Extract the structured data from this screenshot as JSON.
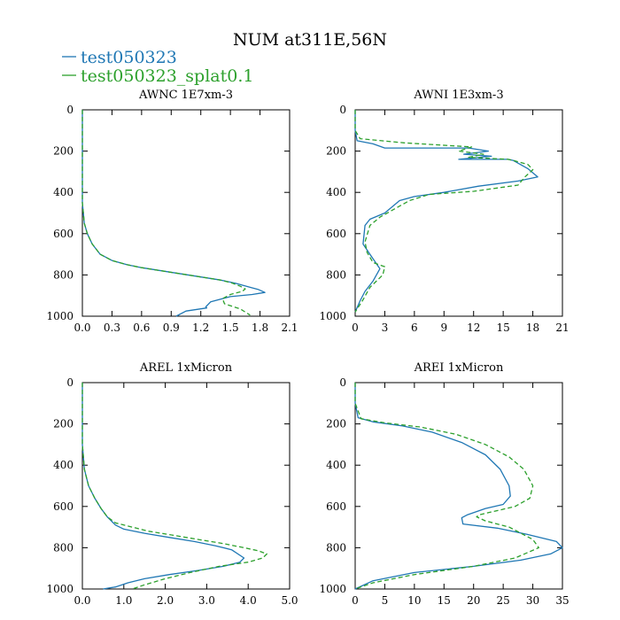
{
  "chart_data": {
    "title": "NUM at311E,56N",
    "legend": [
      {
        "name": "test050323",
        "color": "#1f77b4",
        "dash": "solid"
      },
      {
        "name": "test050323_splat0.1",
        "color": "#2ca02c",
        "dash": "dashed"
      }
    ],
    "panels": [
      {
        "type": "line",
        "title": "AWNC  1E7xm-3",
        "xlim": [
          0,
          2.1
        ],
        "ylim": [
          1000,
          0
        ],
        "xticks": [
          0,
          0.3,
          0.6,
          0.9,
          1.2,
          1.5,
          1.8,
          2.1
        ],
        "xtick_labels": [
          "0.0",
          "0.3",
          "0.6",
          "0.9",
          "1.2",
          "1.5",
          "1.8",
          "2.1"
        ],
        "yticks": [
          0,
          200,
          400,
          600,
          800,
          1000
        ],
        "ytick_labels": [
          "0",
          "200",
          "400",
          "600",
          "800",
          "1000"
        ],
        "series": [
          {
            "name": "test050323",
            "x": [
              0,
              0,
              0,
              0.01,
              0.02,
              0.05,
              0.1,
              0.18,
              0.3,
              0.45,
              0.6,
              0.8,
              1.0,
              1.2,
              1.4,
              1.55,
              1.7,
              1.78,
              1.85,
              1.72,
              1.5,
              1.3,
              1.25,
              1.26,
              1.05,
              0.95
            ],
            "y": [
              0,
              300,
              450,
              500,
              550,
              600,
              650,
              700,
              730,
              750,
              765,
              780,
              795,
              810,
              825,
              840,
              860,
              870,
              885,
              895,
              905,
              930,
              955,
              960,
              975,
              1000
            ]
          },
          {
            "name": "test050323_splat0.1",
            "x": [
              0,
              0,
              0,
              0.01,
              0.02,
              0.05,
              0.1,
              0.18,
              0.3,
              0.45,
              0.6,
              0.8,
              1.0,
              1.2,
              1.4,
              1.52,
              1.6,
              1.65,
              1.62,
              1.5,
              1.42,
              1.44,
              1.6,
              1.7
            ],
            "y": [
              0,
              300,
              450,
              500,
              550,
              600,
              650,
              700,
              730,
              750,
              765,
              780,
              795,
              810,
              825,
              840,
              855,
              868,
              880,
              895,
              915,
              940,
              965,
              995
            ]
          }
        ]
      },
      {
        "type": "line",
        "title": "AWNI  1E3xm-3",
        "xlim": [
          0,
          21
        ],
        "ylim": [
          1000,
          0
        ],
        "xticks": [
          0,
          3,
          6,
          9,
          12,
          15,
          18,
          21
        ],
        "xtick_labels": [
          "0",
          "3",
          "6",
          "9",
          "12",
          "15",
          "18",
          "21"
        ],
        "yticks": [
          0,
          200,
          400,
          600,
          800,
          1000
        ],
        "ytick_labels": [
          "0",
          "200",
          "400",
          "600",
          "800",
          "1000"
        ],
        "series": [
          {
            "name": "test050323",
            "x": [
              0,
              0,
              0.2,
              1.8,
              3.0,
              11.5,
              13.5,
              11.0,
              13.8,
              10.5,
              15.5,
              16.0,
              17.5,
              18.5,
              16.5,
              12.5,
              9.0,
              6.0,
              4.5,
              3.0,
              1.5,
              1.0,
              0.8,
              1.5,
              2.0,
              2.5,
              1.8,
              1.0,
              0.5,
              0
            ],
            "y": [
              0,
              100,
              150,
              165,
              185,
              185,
              200,
              215,
              225,
              240,
              240,
              245,
              285,
              325,
              345,
              370,
              400,
              420,
              440,
              500,
              530,
              560,
              650,
              700,
              735,
              770,
              830,
              880,
              925,
              980
            ]
          },
          {
            "name": "test050323_splat0.1",
            "x": [
              0,
              0,
              0.5,
              5.0,
              11.8,
              10.5,
              13.0,
              11.5,
              15.5,
              16.0,
              17.5,
              18.0,
              17.2,
              16.5,
              12.0,
              7.5,
              5.5,
              4.0,
              2.5,
              1.5,
              1.0,
              1.2,
              1.8,
              3.0,
              2.8,
              1.5,
              0.8,
              0
            ],
            "y": [
              0,
              100,
              140,
              160,
              180,
              200,
              215,
              230,
              240,
              245,
              265,
              290,
              325,
              365,
              395,
              410,
              440,
              480,
              520,
              560,
              640,
              690,
              740,
              760,
              800,
              860,
              920,
              980
            ]
          }
        ]
      },
      {
        "type": "line",
        "title": "AREL  1xMicron",
        "xlim": [
          0,
          5.0
        ],
        "ylim": [
          1000,
          0
        ],
        "xticks": [
          0,
          1.0,
          2.0,
          3.0,
          4.0,
          5.0
        ],
        "xtick_labels": [
          "0.0",
          "1.0",
          "2.0",
          "3.0",
          "4.0",
          "5.0"
        ],
        "yticks": [
          0,
          200,
          400,
          600,
          800,
          1000
        ],
        "ytick_labels": [
          "0",
          "200",
          "400",
          "600",
          "800",
          "1000"
        ],
        "series": [
          {
            "name": "test050323",
            "x": [
              0,
              0,
              0.05,
              0.15,
              0.3,
              0.45,
              0.6,
              0.8,
              1.0,
              1.5,
              2.1,
              2.7,
              3.2,
              3.6,
              3.9,
              3.8,
              3.4,
              2.8,
              2.1,
              1.5,
              1.1,
              0.8,
              0.5
            ],
            "y": [
              0,
              300,
              420,
              500,
              560,
              610,
              650,
              690,
              710,
              730,
              750,
              770,
              790,
              810,
              850,
              870,
              890,
              910,
              930,
              950,
              970,
              990,
              1000
            ]
          },
          {
            "name": "test050323_splat0.1",
            "x": [
              0,
              0,
              0.05,
              0.15,
              0.3,
              0.45,
              0.6,
              0.8,
              1.2,
              1.6,
              2.2,
              2.8,
              3.4,
              3.9,
              4.25,
              4.45,
              4.35,
              4.0,
              3.3,
              2.6,
              2.0,
              1.5,
              1.2
            ],
            "y": [
              0,
              300,
              420,
              500,
              560,
              610,
              650,
              680,
              700,
              720,
              740,
              760,
              780,
              800,
              815,
              830,
              850,
              870,
              890,
              920,
              950,
              980,
              1000
            ]
          }
        ]
      },
      {
        "type": "line",
        "title": "AREI  1xMicron",
        "xlim": [
          0,
          35
        ],
        "ylim": [
          1000,
          0
        ],
        "xticks": [
          0,
          5,
          10,
          15,
          20,
          25,
          30,
          35
        ],
        "xtick_labels": [
          "0",
          "5",
          "10",
          "15",
          "20",
          "25",
          "30",
          "35"
        ],
        "yticks": [
          0,
          200,
          400,
          600,
          800,
          1000
        ],
        "ytick_labels": [
          "0",
          "200",
          "400",
          "600",
          "800",
          "1000"
        ],
        "series": [
          {
            "name": "test050323",
            "x": [
              0,
              0,
              0.5,
              3,
              8,
              13,
              18,
              22,
              24.5,
              26,
              26.2,
              25,
              22,
              19,
              18,
              18.2,
              24,
              29,
              34,
              35,
              33,
              28,
              20,
              10,
              3,
              0
            ],
            "y": [
              0,
              100,
              170,
              190,
              210,
              240,
              290,
              350,
              420,
              500,
              550,
              590,
              610,
              640,
              655,
              685,
              705,
              735,
              770,
              800,
              830,
              860,
              890,
              920,
              960,
              1000
            ]
          },
          {
            "name": "test050323_splat0.1",
            "x": [
              0,
              0,
              1,
              5,
              11,
              17,
              22,
              26,
              28.5,
              30,
              29.5,
              27,
              24,
              21,
              20.5,
              22,
              26,
              30,
              31,
              27,
              20,
              10,
              3,
              0
            ],
            "y": [
              0,
              100,
              175,
              195,
              215,
              250,
              300,
              360,
              420,
              500,
              560,
              600,
              620,
              640,
              650,
              670,
              700,
              760,
              800,
              850,
              890,
              930,
              970,
              1000
            ]
          }
        ]
      }
    ]
  }
}
